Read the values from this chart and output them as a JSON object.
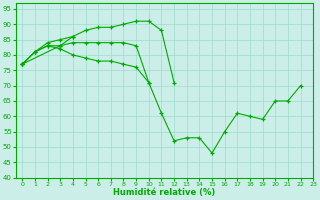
{
  "xlabel": "Humidité relative (%)",
  "bg_color": "#cceee8",
  "grid_color": "#99ddcc",
  "line_color": "#00aa00",
  "marker": "+",
  "xlim": [
    -0.5,
    23
  ],
  "ylim": [
    40,
    97
  ],
  "yticks": [
    40,
    45,
    50,
    55,
    60,
    65,
    70,
    75,
    80,
    85,
    90,
    95
  ],
  "xticks": [
    0,
    1,
    2,
    3,
    4,
    5,
    6,
    7,
    8,
    9,
    10,
    11,
    12,
    13,
    14,
    15,
    16,
    17,
    18,
    19,
    20,
    21,
    22,
    23
  ],
  "series": [
    {
      "x": [
        0,
        1,
        2,
        3,
        4,
        5,
        6,
        7,
        8,
        9,
        10,
        11,
        12,
        13,
        14,
        15,
        16,
        17,
        18,
        19,
        20,
        21,
        22
      ],
      "y": [
        77,
        81,
        83,
        83,
        84,
        84,
        84,
        84,
        84,
        83,
        71,
        61,
        52,
        53,
        53,
        48,
        55,
        61,
        60,
        59,
        65,
        65,
        70
      ]
    },
    {
      "x": [
        0,
        1,
        2,
        3,
        4,
        5,
        6,
        7,
        8,
        9,
        10,
        11,
        12
      ],
      "y": [
        77,
        81,
        84,
        85,
        86,
        88,
        89,
        89,
        90,
        91,
        91,
        88,
        71
      ]
    },
    {
      "x": [
        0,
        1,
        2,
        3,
        4,
        5,
        6,
        7,
        8,
        9,
        10
      ],
      "y": [
        77,
        81,
        83,
        82,
        80,
        79,
        78,
        78,
        77,
        76,
        71
      ]
    },
    {
      "x": [
        0,
        3,
        4
      ],
      "y": [
        77,
        83,
        86
      ]
    }
  ]
}
